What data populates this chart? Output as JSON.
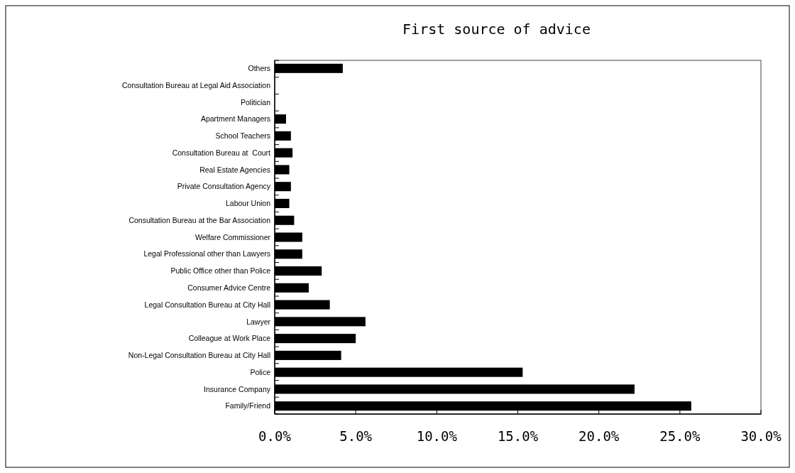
{
  "chart_data": {
    "type": "bar",
    "orientation": "horizontal",
    "title": "First source of advice",
    "categories": [
      "Others",
      "Consultation Bureau at Legal Aid Association",
      "Politician",
      "Apartment Managers",
      "School Teachers",
      "Consultation Bureau at  Court",
      "Real Estate Agencies",
      "Private Consultation Agency",
      "Labour Union",
      "Consultation Bureau at the Bar Association",
      "Welfare Commissioner",
      "Legal Professional other than Lawyers",
      "Public Office other than Police",
      "Consumer Advice Centre",
      "Legal Consultation Bureau at City Hall",
      "Lawyer",
      "Colleague at Work Place",
      "Non-Legal Consultation Bureau at City Hall",
      "Police",
      "Insurance Company",
      "Family/Friend"
    ],
    "values": [
      4.2,
      0,
      0,
      0.7,
      1.0,
      1.1,
      0.9,
      1.0,
      0.9,
      1.2,
      1.7,
      1.7,
      2.9,
      2.1,
      3.4,
      5.6,
      5.0,
      4.1,
      15.3,
      22.2,
      25.7
    ],
    "color": "#000000",
    "xlim": [
      0,
      30
    ],
    "xticks": [
      {
        "value": 0,
        "label": "0.0%"
      },
      {
        "value": 5,
        "label": "5.0%"
      },
      {
        "value": 10,
        "label": "10.0%"
      },
      {
        "value": 15,
        "label": "15.0%"
      },
      {
        "value": 20,
        "label": "20.0%"
      },
      {
        "value": 25,
        "label": "25.0%"
      },
      {
        "value": 30,
        "label": "30.0%"
      }
    ],
    "grid": false
  }
}
